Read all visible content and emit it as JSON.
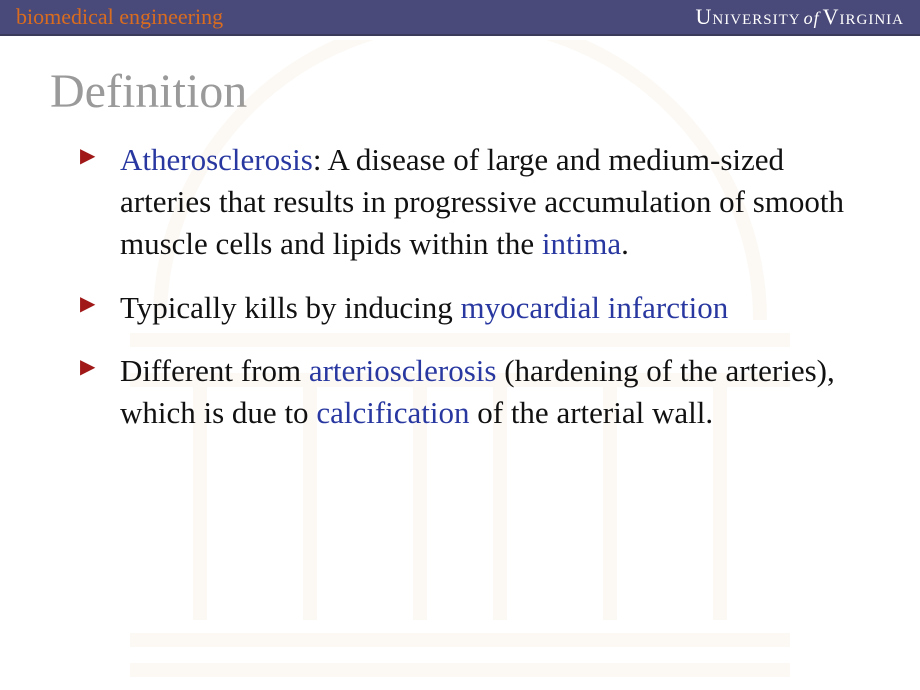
{
  "header": {
    "department": "biomedical engineering",
    "university_main1": "University",
    "university_of": "of",
    "university_main2": "Virginia"
  },
  "title": "Definition",
  "bullets": [
    {
      "segments": [
        {
          "text": "Atherosclerosis",
          "hl": true
        },
        {
          "text": ": A disease of large and medium-sized arteries that results in progressive accumulation of smooth muscle cells and lipids within the ",
          "hl": false
        },
        {
          "text": "intima",
          "hl": true
        },
        {
          "text": ".",
          "hl": false
        }
      ]
    },
    {
      "segments": [
        {
          "text": "Typically kills by inducing ",
          "hl": false
        },
        {
          "text": "myocardial infarction",
          "hl": true
        }
      ]
    },
    {
      "segments": [
        {
          "text": "Different from ",
          "hl": false
        },
        {
          "text": "arteriosclerosis",
          "hl": true
        },
        {
          "text": " (hardening of the arteries), which is due to ",
          "hl": false
        },
        {
          "text": "calcification",
          "hl": true
        },
        {
          "text": " of the arterial wall.",
          "hl": false
        }
      ]
    }
  ],
  "style": {
    "header_bg": "#4a4a7a",
    "dept_color": "#d96c1f",
    "univ_color": "#ffffff",
    "title_color": "#9a9a9a",
    "title_fontsize": 48,
    "body_fontsize": 31,
    "body_color": "#111111",
    "highlight_color": "#2838a0",
    "bullet_glyph_color": "#a01818",
    "watermark_opacity": 0.04,
    "background": "#ffffff"
  }
}
